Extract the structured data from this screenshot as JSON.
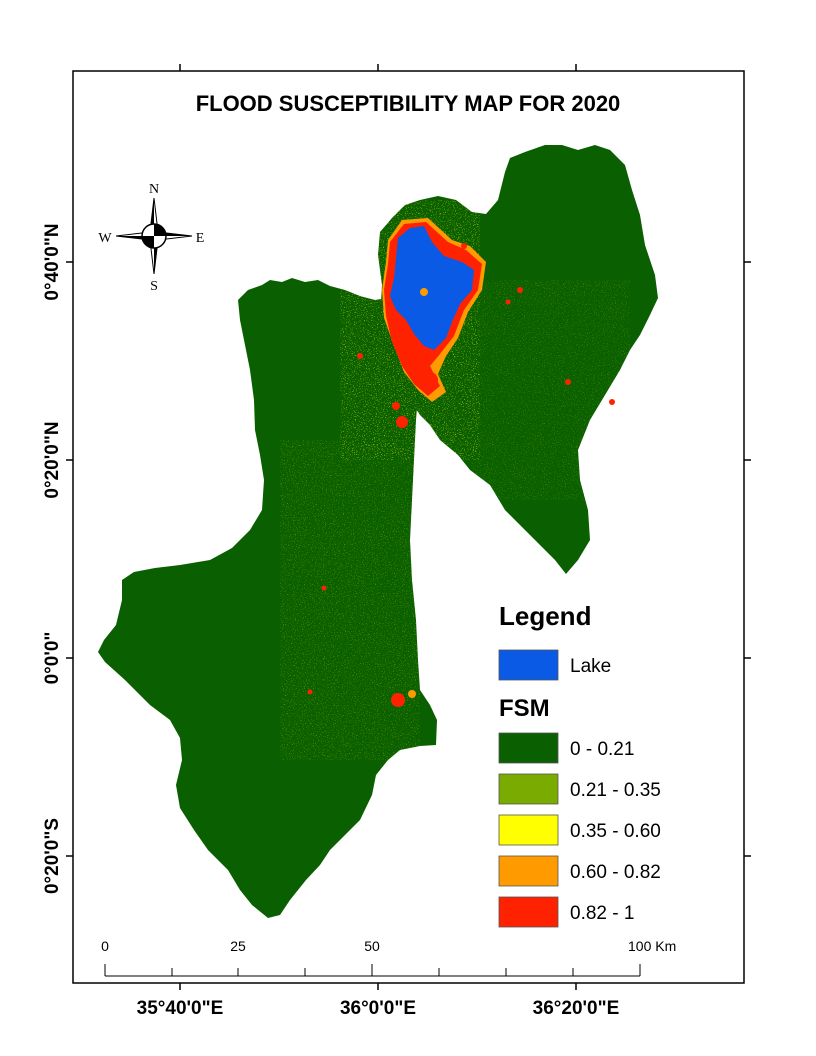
{
  "title": "FLOOD SUSCEPTIBILITY MAP FOR 2020",
  "compass": {
    "north": "N",
    "south": "S",
    "east": "E",
    "west": "W"
  },
  "latitude_labels": [
    "0°40'0\"N",
    "0°20'0\"N",
    "0°0'0\"",
    "0°20'0\"S"
  ],
  "longitude_labels": [
    "35°40'0\"E",
    "36°0'0\"E",
    "36°20'0\"E"
  ],
  "legend": {
    "title": "Legend",
    "lake": {
      "label": "Lake",
      "color": "#0a5ae6"
    },
    "fsm_title": "FSM",
    "classes": [
      {
        "label": "0 - 0.21",
        "color": "#0a5f00"
      },
      {
        "label": "0.21 - 0.35",
        "color": "#7aab00"
      },
      {
        "label": "0.35 - 0.60",
        "color": "#ffff00"
      },
      {
        "label": "0.60 - 0.82",
        "color": "#ff9a00"
      },
      {
        "label": "0.82 - 1",
        "color": "#ff2200"
      }
    ]
  },
  "scale_bar": {
    "labels": [
      "0",
      "25",
      "50",
      "100 Km"
    ]
  }
}
